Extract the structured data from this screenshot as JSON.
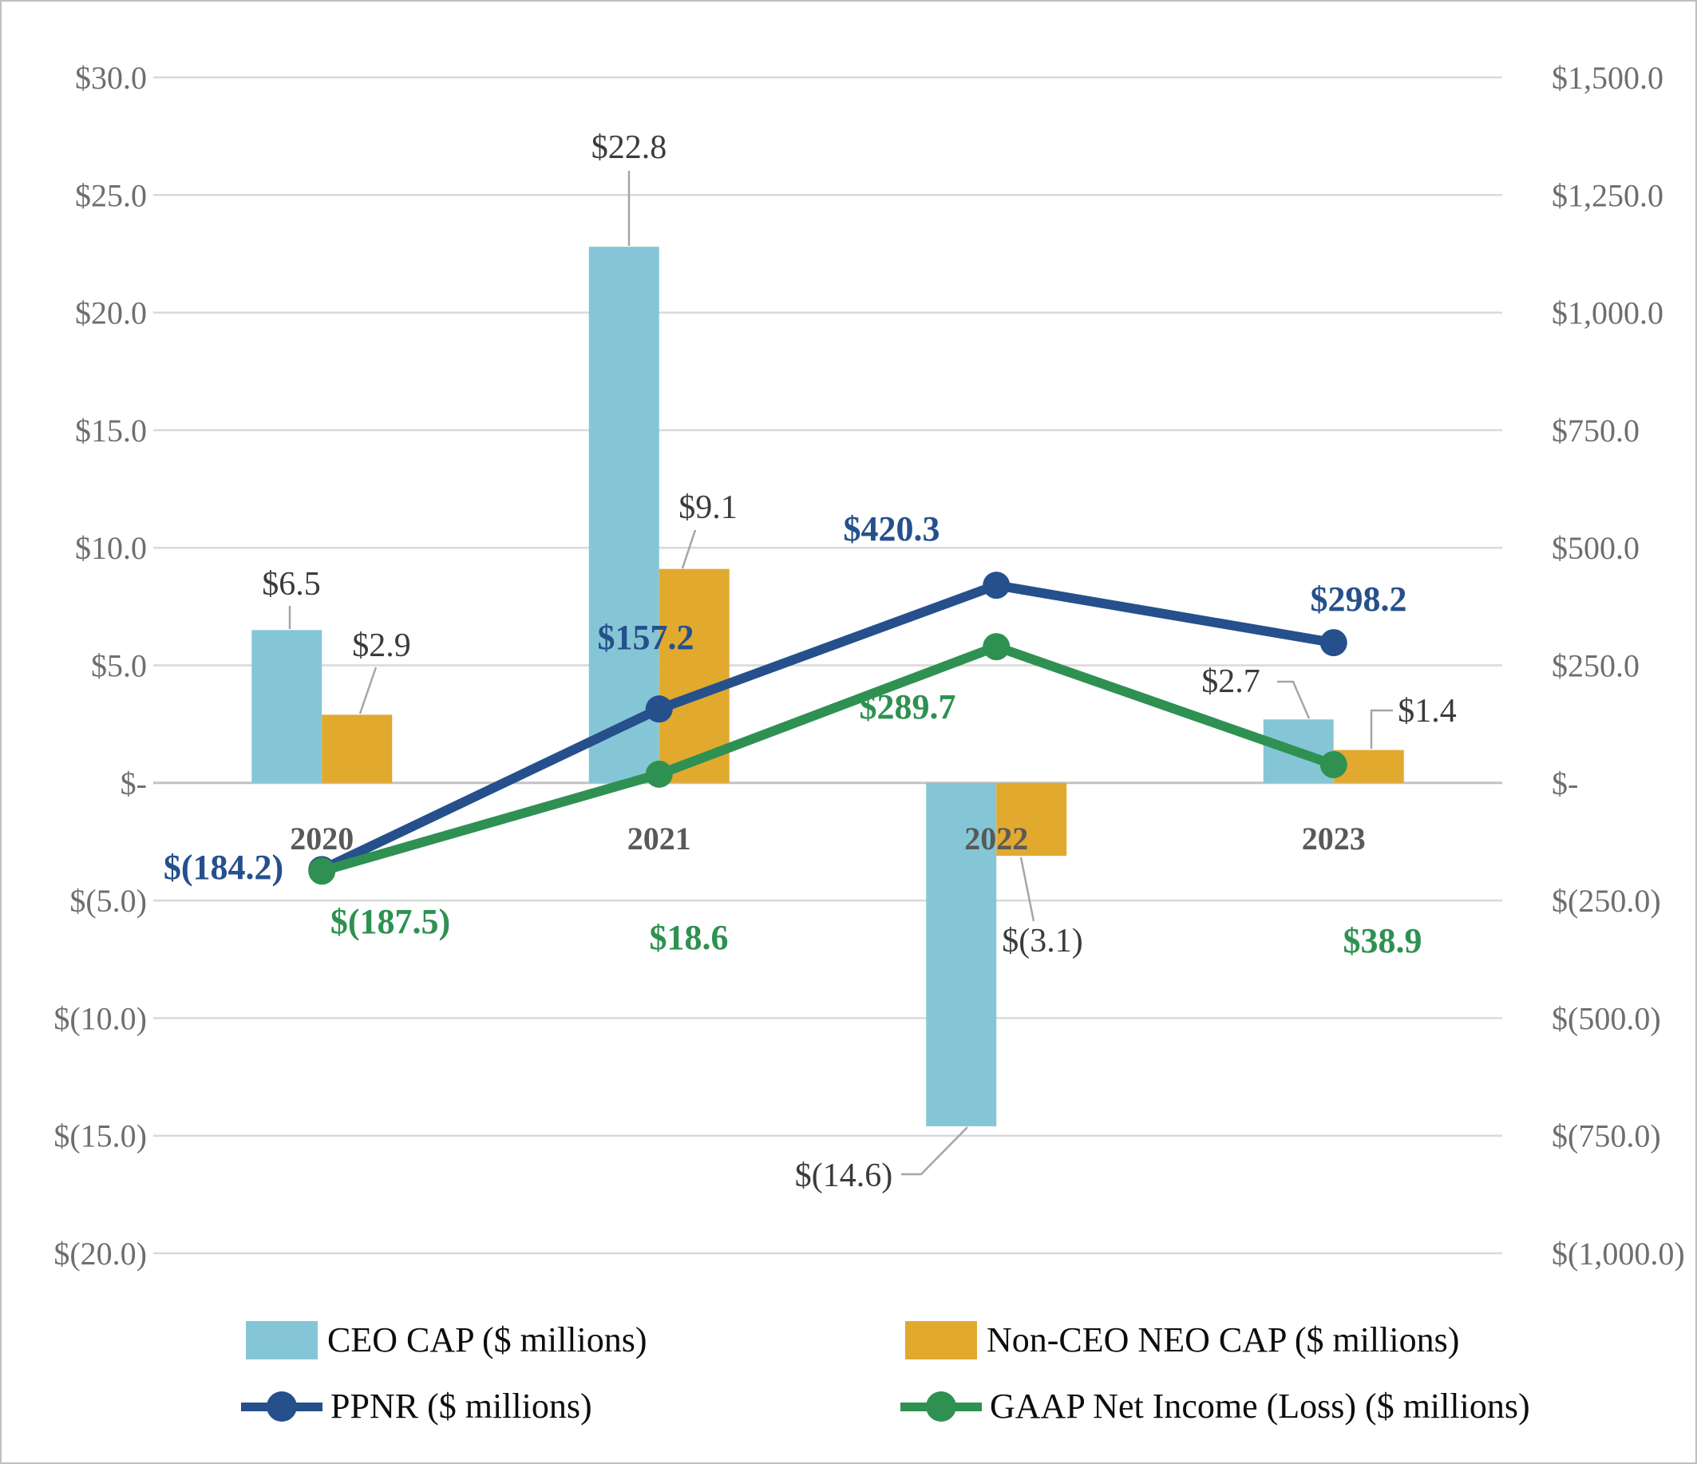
{
  "chart_data": {
    "type": "combo-bar-line",
    "title": "",
    "categories": [
      "2020",
      "2021",
      "2022",
      "2023"
    ],
    "series": [
      {
        "name": "CEO CAP ($ millions)",
        "type": "bar",
        "axis": "left",
        "color": "#85C6D6",
        "values": [
          6.5,
          22.8,
          -14.6,
          2.7
        ],
        "labels": [
          "$6.5",
          "$22.8",
          "$(14.6)",
          "$2.7"
        ]
      },
      {
        "name": "Non-CEO NEO CAP ($ millions)",
        "type": "bar",
        "axis": "left",
        "color": "#E2A92F",
        "values": [
          2.9,
          9.1,
          -3.1,
          1.4
        ],
        "labels": [
          "$2.9",
          "$9.1",
          "$(3.1)",
          "$1.4"
        ]
      },
      {
        "name": "PPNR ($ millions)",
        "type": "line",
        "axis": "right",
        "color": "#25508C",
        "values": [
          -184.2,
          157.2,
          420.3,
          298.2
        ],
        "labels": [
          "$(184.2)",
          "$157.2",
          "$420.3",
          "$298.2"
        ]
      },
      {
        "name": "GAAP Net Income (Loss) ($ millions)",
        "type": "line",
        "axis": "right",
        "color": "#2E9152",
        "values": [
          -187.5,
          18.6,
          289.7,
          38.9
        ],
        "labels": [
          "$(187.5)",
          "$18.6",
          "$289.7",
          "$38.9"
        ]
      }
    ],
    "left_axis": {
      "min": -20,
      "max": 30,
      "step": 5,
      "tick_labels": [
        "$30.0",
        "$25.0",
        "$20.0",
        "$15.0",
        "$10.0",
        "$5.0",
        "$-",
        "$(5.0)",
        "$(10.0)",
        "$(15.0)",
        "$(20.0)"
      ]
    },
    "right_axis": {
      "min": -1000,
      "max": 1500,
      "step": 250,
      "tick_labels": [
        "$1,500.0",
        "$1,250.0",
        "$1,000.0",
        "$750.0",
        "$500.0",
        "$250.0",
        "$-",
        "$(250.0)",
        "$(500.0)",
        "$(750.0)",
        "$(1,000.0)"
      ]
    },
    "grid": true,
    "legend_position": "bottom",
    "colors": {
      "gridline": "#D9D9D9",
      "zero_axis": "#C2C2C2",
      "tick_text": "#6E6E6E",
      "year_text": "#595959",
      "bar_label_text": "#3B3B3B",
      "leader_line": "#A6A6A6"
    }
  }
}
